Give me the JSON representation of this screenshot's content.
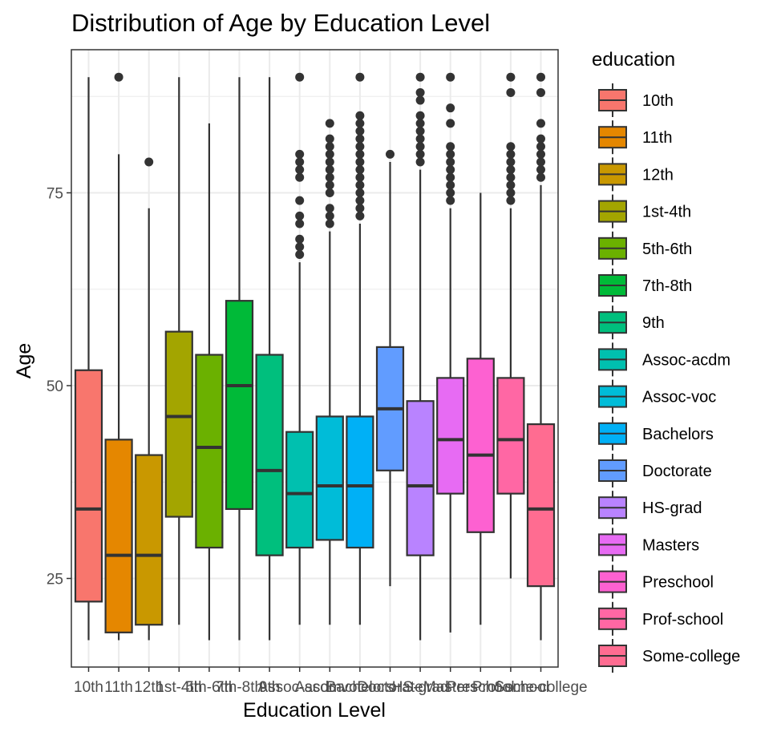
{
  "chart_data": {
    "type": "boxplot",
    "title": "Distribution of Age by Education Level",
    "xlabel": "Education Level",
    "ylabel": "Age",
    "ylim": [
      14,
      93
    ],
    "yticks": [
      25,
      50,
      75
    ],
    "grid": true,
    "legend": {
      "title": "education",
      "placement": "right"
    },
    "categories": [
      "10th",
      "11th",
      "12th",
      "1st-4th",
      "5th-6th",
      "7th-8th",
      "9th",
      "Assoc-acdm",
      "Assoc-voc",
      "Bachelors",
      "Doctorate",
      "HS-grad",
      "Masters",
      "Preschool",
      "Prof-school",
      "Some-college"
    ],
    "colors": [
      "#F8766D",
      "#E58700",
      "#C99800",
      "#A3A500",
      "#6BB100",
      "#00BA38",
      "#00BF7D",
      "#00C0AF",
      "#00BCD8",
      "#00B0F6",
      "#619CFF",
      "#B983FF",
      "#E76BF3",
      "#FD61D1",
      "#FF67A4",
      "#FF6C91"
    ],
    "series": [
      {
        "name": "10th",
        "min": 17,
        "q1": 22,
        "median": 34,
        "q3": 52,
        "max": 90,
        "outliers": []
      },
      {
        "name": "11th",
        "min": 17,
        "q1": 18,
        "median": 28,
        "q3": 43,
        "max": 80,
        "outliers": [
          90
        ]
      },
      {
        "name": "12th",
        "min": 17,
        "q1": 19,
        "median": 28,
        "q3": 41,
        "max": 73,
        "outliers": [
          79
        ]
      },
      {
        "name": "1st-4th",
        "min": 19,
        "q1": 33,
        "median": 46,
        "q3": 57,
        "max": 90,
        "outliers": []
      },
      {
        "name": "5th-6th",
        "min": 17,
        "q1": 29,
        "median": 42,
        "q3": 54,
        "max": 84,
        "outliers": []
      },
      {
        "name": "7th-8th",
        "min": 17,
        "q1": 34,
        "median": 50,
        "q3": 61,
        "max": 90,
        "outliers": []
      },
      {
        "name": "9th",
        "min": 17,
        "q1": 28,
        "median": 39,
        "q3": 54,
        "max": 90,
        "outliers": []
      },
      {
        "name": "Assoc-acdm",
        "min": 19,
        "q1": 29,
        "median": 36,
        "q3": 44,
        "max": 66,
        "outliers": [
          67,
          68,
          69,
          71,
          72,
          74,
          77,
          78,
          79,
          80,
          90
        ]
      },
      {
        "name": "Assoc-voc",
        "min": 19,
        "q1": 30,
        "median": 37,
        "q3": 46,
        "max": 70,
        "outliers": [
          71,
          72,
          73,
          75,
          76,
          77,
          78,
          79,
          80,
          81,
          82,
          84
        ]
      },
      {
        "name": "Bachelors",
        "min": 19,
        "q1": 29,
        "median": 37,
        "q3": 46,
        "max": 71,
        "outliers": [
          72,
          73,
          74,
          75,
          76,
          77,
          78,
          79,
          80,
          81,
          82,
          83,
          84,
          85,
          90
        ]
      },
      {
        "name": "Doctorate",
        "min": 24,
        "q1": 39,
        "median": 47,
        "q3": 55,
        "max": 79,
        "outliers": [
          80
        ]
      },
      {
        "name": "HS-grad",
        "min": 17,
        "q1": 28,
        "median": 37,
        "q3": 48,
        "max": 78,
        "outliers": [
          79,
          80,
          81,
          82,
          83,
          84,
          85,
          87,
          88,
          90
        ]
      },
      {
        "name": "Masters",
        "min": 18,
        "q1": 36,
        "median": 43,
        "q3": 51,
        "max": 73,
        "outliers": [
          74,
          75,
          76,
          77,
          78,
          79,
          80,
          81,
          84,
          86,
          90
        ]
      },
      {
        "name": "Preschool",
        "min": 19,
        "q1": 31,
        "median": 41,
        "q3": 53.5,
        "max": 75,
        "outliers": []
      },
      {
        "name": "Prof-school",
        "min": 25,
        "q1": 36,
        "median": 43,
        "q3": 51,
        "max": 73,
        "outliers": [
          74,
          75,
          76,
          77,
          78,
          79,
          80,
          81,
          88,
          90
        ]
      },
      {
        "name": "Some-college",
        "min": 17,
        "q1": 24,
        "median": 34,
        "q3": 45,
        "max": 76,
        "outliers": [
          77,
          78,
          79,
          80,
          81,
          82,
          84,
          88,
          90
        ]
      }
    ]
  }
}
